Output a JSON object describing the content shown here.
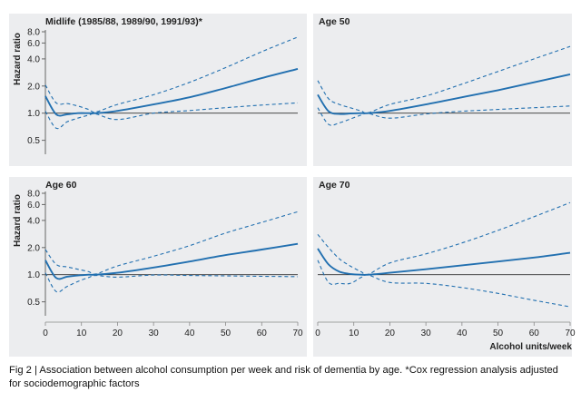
{
  "figure": {
    "caption": "Fig 2 | Association between alcohol consumption per week and risk of dementia by age. *Cox regression analysis adjusted for sociodemographic factors",
    "colors": {
      "panel_background": "#ecedef",
      "line": "#2270b0",
      "reference_line": "#333333",
      "page_background": "#ffffff"
    }
  },
  "chart_data": [
    {
      "type": "line",
      "title": "Midlife (1985/88, 1989/90, 1991/93)*",
      "xlabel": "",
      "ylabel": "Hazard ratio",
      "xlim": [
        0,
        70
      ],
      "ylim": [
        0.35,
        8.0
      ],
      "yscale": "log",
      "yticks": [
        0.5,
        1.0,
        2.0,
        4.0,
        6.0,
        8.0
      ],
      "ytick_labels": [
        "0.5",
        "1.0",
        "2.0",
        "4.0",
        "6.0",
        "8.0"
      ],
      "xticks": [],
      "x": [
        0,
        3,
        6,
        9,
        12,
        14,
        20,
        30,
        40,
        50,
        60,
        70
      ],
      "series": [
        {
          "name": "Hazard ratio",
          "style": "solid",
          "values": [
            1.55,
            0.97,
            0.97,
            1.0,
            1.0,
            1.0,
            1.06,
            1.25,
            1.5,
            1.9,
            2.45,
            3.1
          ]
        },
        {
          "name": "Lower 95% CI",
          "style": "dashed",
          "values": [
            1.05,
            0.68,
            0.8,
            0.88,
            0.95,
            0.98,
            0.85,
            1.0,
            1.07,
            1.15,
            1.23,
            1.3
          ]
        },
        {
          "name": "Upper 95% CI",
          "style": "dashed",
          "values": [
            2.05,
            1.3,
            1.28,
            1.2,
            1.1,
            1.03,
            1.25,
            1.6,
            2.2,
            3.2,
            4.8,
            7.0
          ]
        }
      ],
      "reference_line": 1.0
    },
    {
      "type": "line",
      "title": "Age 50",
      "xlabel": "",
      "ylabel": "",
      "xlim": [
        0,
        70
      ],
      "ylim": [
        0.35,
        8.0
      ],
      "yscale": "log",
      "yticks": [
        0.5,
        1.0,
        2.0,
        4.0,
        6.0,
        8.0
      ],
      "ytick_labels": [],
      "xticks": [],
      "x": [
        0,
        3,
        6,
        9,
        12,
        14,
        20,
        30,
        40,
        50,
        60,
        70
      ],
      "series": [
        {
          "name": "Hazard ratio",
          "style": "solid",
          "values": [
            1.6,
            1.05,
            0.98,
            0.99,
            1.0,
            1.0,
            1.06,
            1.25,
            1.5,
            1.8,
            2.2,
            2.7
          ]
        },
        {
          "name": "Lower 95% CI",
          "style": "dashed",
          "values": [
            1.15,
            0.75,
            0.78,
            0.86,
            0.95,
            0.99,
            0.88,
            0.98,
            1.05,
            1.1,
            1.15,
            1.2
          ]
        },
        {
          "name": "Upper 95% CI",
          "style": "dashed",
          "values": [
            2.3,
            1.45,
            1.25,
            1.15,
            1.06,
            1.01,
            1.25,
            1.55,
            2.1,
            2.9,
            4.0,
            5.5
          ]
        }
      ],
      "reference_line": 1.0
    },
    {
      "type": "line",
      "title": "Age 60",
      "xlabel": "",
      "ylabel": "Hazard ratio",
      "xlim": [
        0,
        70
      ],
      "ylim": [
        0.35,
        8.0
      ],
      "yscale": "log",
      "yticks": [
        0.5,
        1.0,
        2.0,
        4.0,
        6.0,
        8.0
      ],
      "ytick_labels": [
        "0.5",
        "1.0",
        "2.0",
        "4.0",
        "6.0",
        "8.0"
      ],
      "xticks": [
        0,
        10,
        20,
        30,
        40,
        50,
        60,
        70
      ],
      "xtick_labels": [
        "0",
        "10",
        "20",
        "30",
        "40",
        "50",
        "60",
        "70"
      ],
      "x": [
        0,
        3,
        6,
        9,
        12,
        14,
        20,
        30,
        40,
        50,
        60,
        70
      ],
      "series": [
        {
          "name": "Hazard ratio",
          "style": "solid",
          "values": [
            1.45,
            0.92,
            0.95,
            0.98,
            1.0,
            1.0,
            1.05,
            1.2,
            1.4,
            1.65,
            1.9,
            2.2
          ]
        },
        {
          "name": "Lower 95% CI",
          "style": "dashed",
          "values": [
            1.05,
            0.65,
            0.74,
            0.84,
            0.93,
            0.98,
            0.94,
            0.99,
            0.98,
            0.97,
            0.96,
            0.95
          ]
        },
        {
          "name": "Upper 95% CI",
          "style": "dashed",
          "values": [
            1.9,
            1.3,
            1.22,
            1.15,
            1.08,
            1.02,
            1.25,
            1.6,
            2.1,
            2.9,
            3.8,
            5.0
          ]
        }
      ],
      "reference_line": 1.0
    },
    {
      "type": "line",
      "title": "Age 70",
      "xlabel": "Alcohol units/week",
      "ylabel": "",
      "xlim": [
        0,
        70
      ],
      "ylim": [
        0.35,
        8.0
      ],
      "yscale": "log",
      "yticks": [
        0.5,
        1.0,
        2.0,
        4.0,
        6.0,
        8.0
      ],
      "ytick_labels": [],
      "xticks": [
        0,
        10,
        20,
        30,
        40,
        50,
        60,
        70
      ],
      "xtick_labels": [
        "0",
        "10",
        "20",
        "30",
        "40",
        "50",
        "60",
        "70"
      ],
      "x": [
        0,
        3,
        6,
        9,
        12,
        14,
        20,
        30,
        40,
        50,
        60,
        70
      ],
      "series": [
        {
          "name": "Hazard ratio",
          "style": "solid",
          "values": [
            1.95,
            1.3,
            1.08,
            1.02,
            1.0,
            1.0,
            1.05,
            1.15,
            1.27,
            1.4,
            1.55,
            1.75
          ]
        },
        {
          "name": "Lower 95% CI",
          "style": "dashed",
          "values": [
            1.45,
            0.82,
            0.8,
            0.8,
            0.93,
            0.99,
            0.82,
            0.8,
            0.72,
            0.62,
            0.52,
            0.44
          ]
        },
        {
          "name": "Upper 95% CI",
          "style": "dashed",
          "values": [
            2.8,
            2.0,
            1.5,
            1.25,
            1.08,
            1.01,
            1.35,
            1.7,
            2.25,
            3.1,
            4.4,
            6.3
          ]
        }
      ],
      "reference_line": 1.0
    }
  ]
}
